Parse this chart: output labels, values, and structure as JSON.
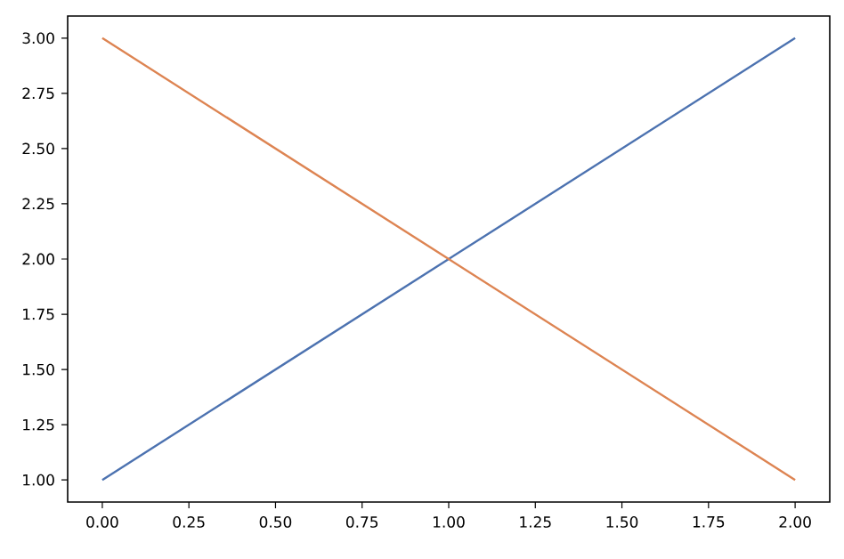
{
  "chart_data": {
    "type": "line",
    "x": [
      0,
      1,
      2
    ],
    "series": [
      {
        "color": "#4c72b0",
        "values": [
          1,
          2,
          3
        ]
      },
      {
        "color": "#dd8452",
        "values": [
          3,
          2,
          1
        ]
      }
    ],
    "xlim": [
      -0.1,
      2.1
    ],
    "ylim": [
      0.9,
      3.1
    ],
    "xticks": [
      {
        "value": 0,
        "label": "0.00"
      },
      {
        "value": 0.25,
        "label": "0.25"
      },
      {
        "value": 0.5,
        "label": "0.50"
      },
      {
        "value": 0.75,
        "label": "0.75"
      },
      {
        "value": 1,
        "label": "1.00"
      },
      {
        "value": 1.25,
        "label": "1.25"
      },
      {
        "value": 1.5,
        "label": "1.50"
      },
      {
        "value": 1.75,
        "label": "1.75"
      },
      {
        "value": 2,
        "label": "2.00"
      }
    ],
    "yticks": [
      {
        "value": 1,
        "label": "1.00"
      },
      {
        "value": 1.25,
        "label": "1.25"
      },
      {
        "value": 1.5,
        "label": "1.50"
      },
      {
        "value": 1.75,
        "label": "1.75"
      },
      {
        "value": 2,
        "label": "2.00"
      },
      {
        "value": 2.25,
        "label": "2.25"
      },
      {
        "value": 2.5,
        "label": "2.50"
      },
      {
        "value": 2.75,
        "label": "2.75"
      },
      {
        "value": 3,
        "label": "3.00"
      }
    ],
    "grid": false,
    "marker": "none",
    "line_style": "solid"
  }
}
